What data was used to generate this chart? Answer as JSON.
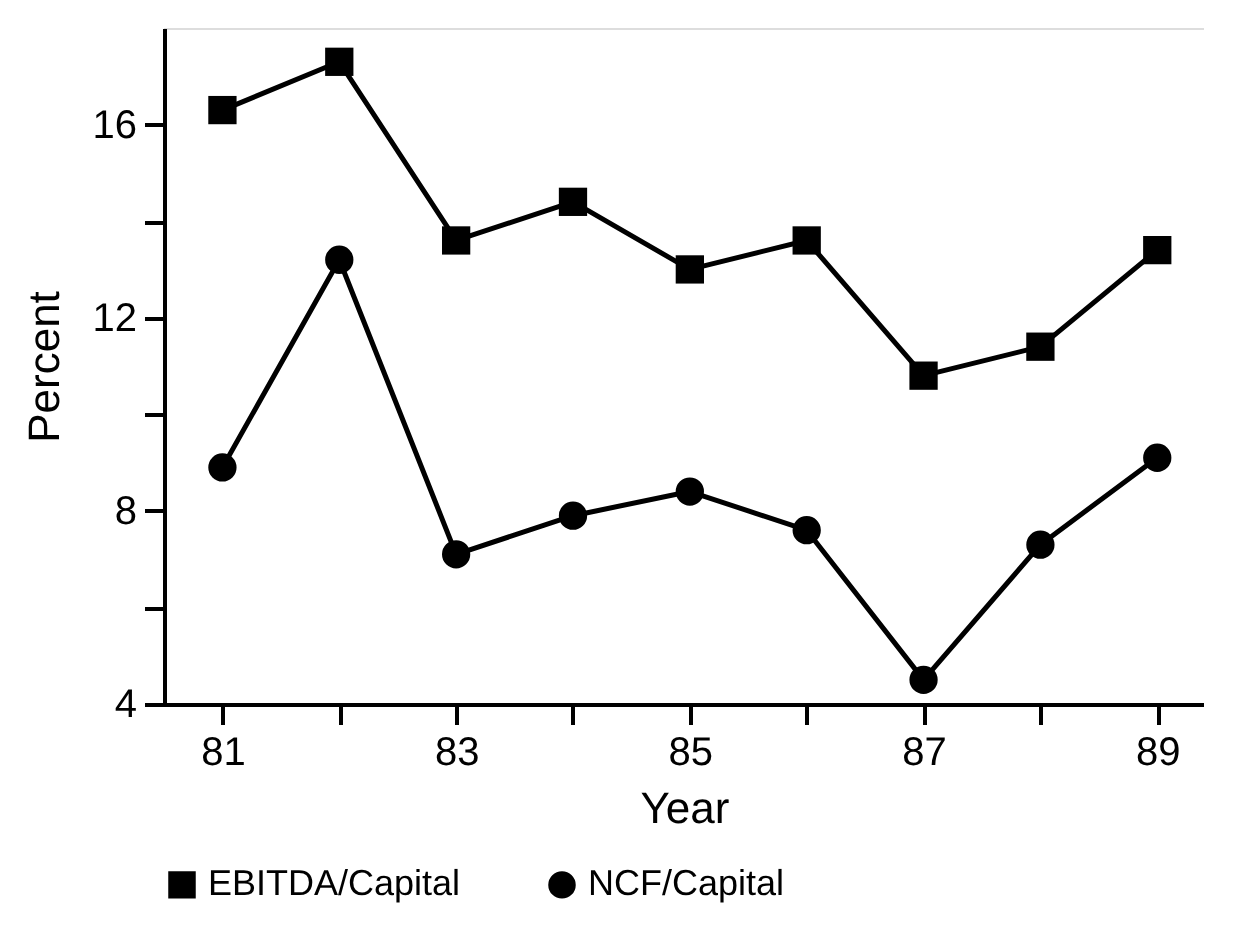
{
  "chart_data": {
    "type": "line",
    "xlabel": "Year",
    "ylabel": "Percent",
    "x": [
      81,
      82,
      83,
      84,
      85,
      86,
      87,
      88,
      89
    ],
    "series": [
      {
        "name": "EBITDA/Capital",
        "color": "#000000",
        "marker": "square",
        "values": [
          16.3,
          17.3,
          13.6,
          14.4,
          13.0,
          13.6,
          10.8,
          11.4,
          13.4
        ]
      },
      {
        "name": "NCF/Capital",
        "color": "#000000",
        "marker": "circle",
        "values": [
          8.9,
          13.2,
          7.1,
          7.9,
          8.4,
          7.6,
          4.5,
          7.3,
          9.1
        ]
      }
    ],
    "xlim": [
      80.5,
      89.4
    ],
    "ylim": [
      4,
      18
    ],
    "xticks": [
      81,
      {
        "value": 82,
        "label": null
      },
      83,
      {
        "value": 84,
        "label": null
      },
      85,
      {
        "value": 86,
        "label": null
      },
      87,
      {
        "value": 88,
        "label": null
      },
      89
    ],
    "yticks": [
      4,
      {
        "value": 6,
        "label": null
      },
      8,
      {
        "value": 10,
        "label": null
      },
      12,
      {
        "value": 14,
        "label": null
      },
      16
    ],
    "grid": false,
    "legend": "bottom",
    "line_style": "solid"
  }
}
